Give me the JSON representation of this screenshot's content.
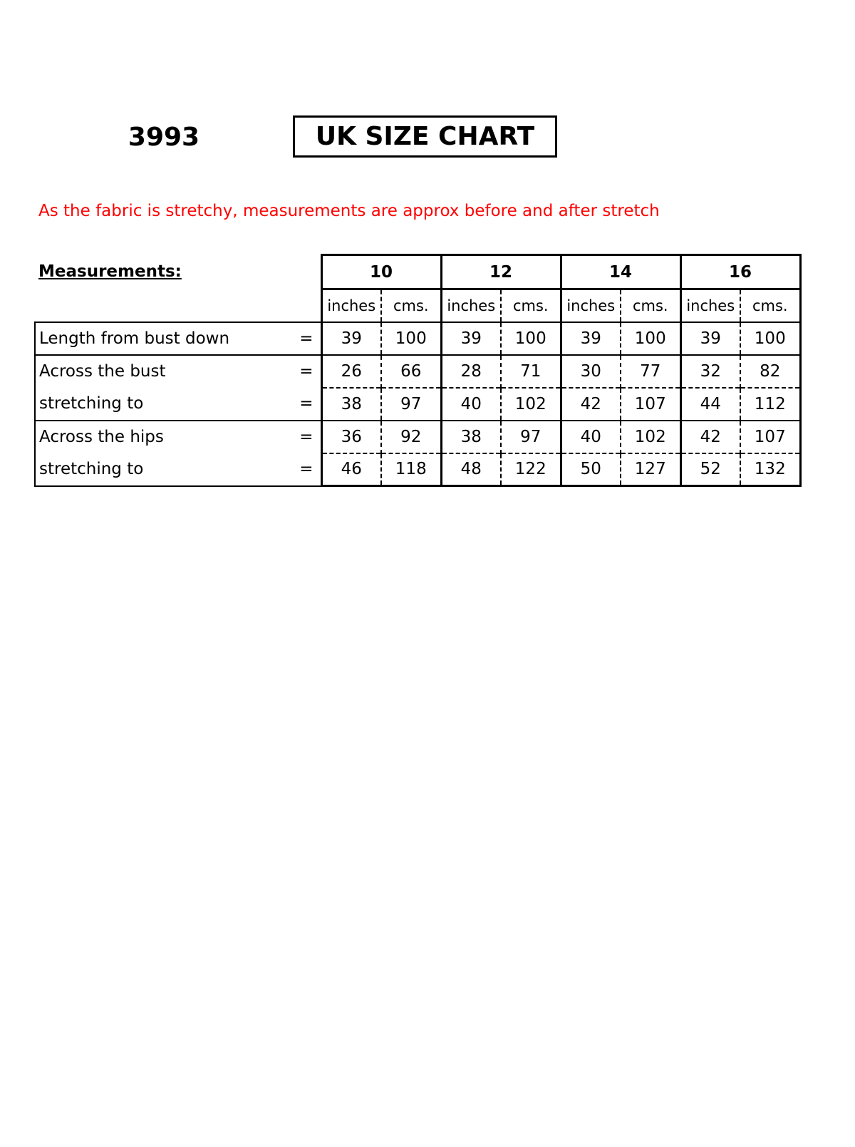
{
  "product_code": "3993",
  "title": "UK SIZE CHART",
  "note": "As the fabric is stretchy, measurements are approx before and after stretch",
  "measurements_label": "Measurements:",
  "sizes": [
    "10",
    "12",
    "14",
    "16"
  ],
  "units": {
    "inches": "inches",
    "cms": "cms."
  },
  "equals": "=",
  "rows": [
    {
      "label": "Length from bust down",
      "values": [
        "39",
        "100",
        "39",
        "100",
        "39",
        "100",
        "39",
        "100"
      ]
    },
    {
      "label": "Across the bust",
      "values": [
        "26",
        "66",
        "28",
        "71",
        "30",
        "77",
        "32",
        "82"
      ]
    },
    {
      "label": "stretching to",
      "values": [
        "38",
        "97",
        "40",
        "102",
        "42",
        "107",
        "44",
        "112"
      ]
    },
    {
      "label": "Across the hips",
      "values": [
        "36",
        "92",
        "38",
        "97",
        "40",
        "102",
        "42",
        "107"
      ]
    },
    {
      "label": "stretching to",
      "values": [
        "46",
        "118",
        "48",
        "122",
        "50",
        "127",
        "52",
        "132"
      ]
    }
  ],
  "colors": {
    "note": "#ff0000"
  }
}
